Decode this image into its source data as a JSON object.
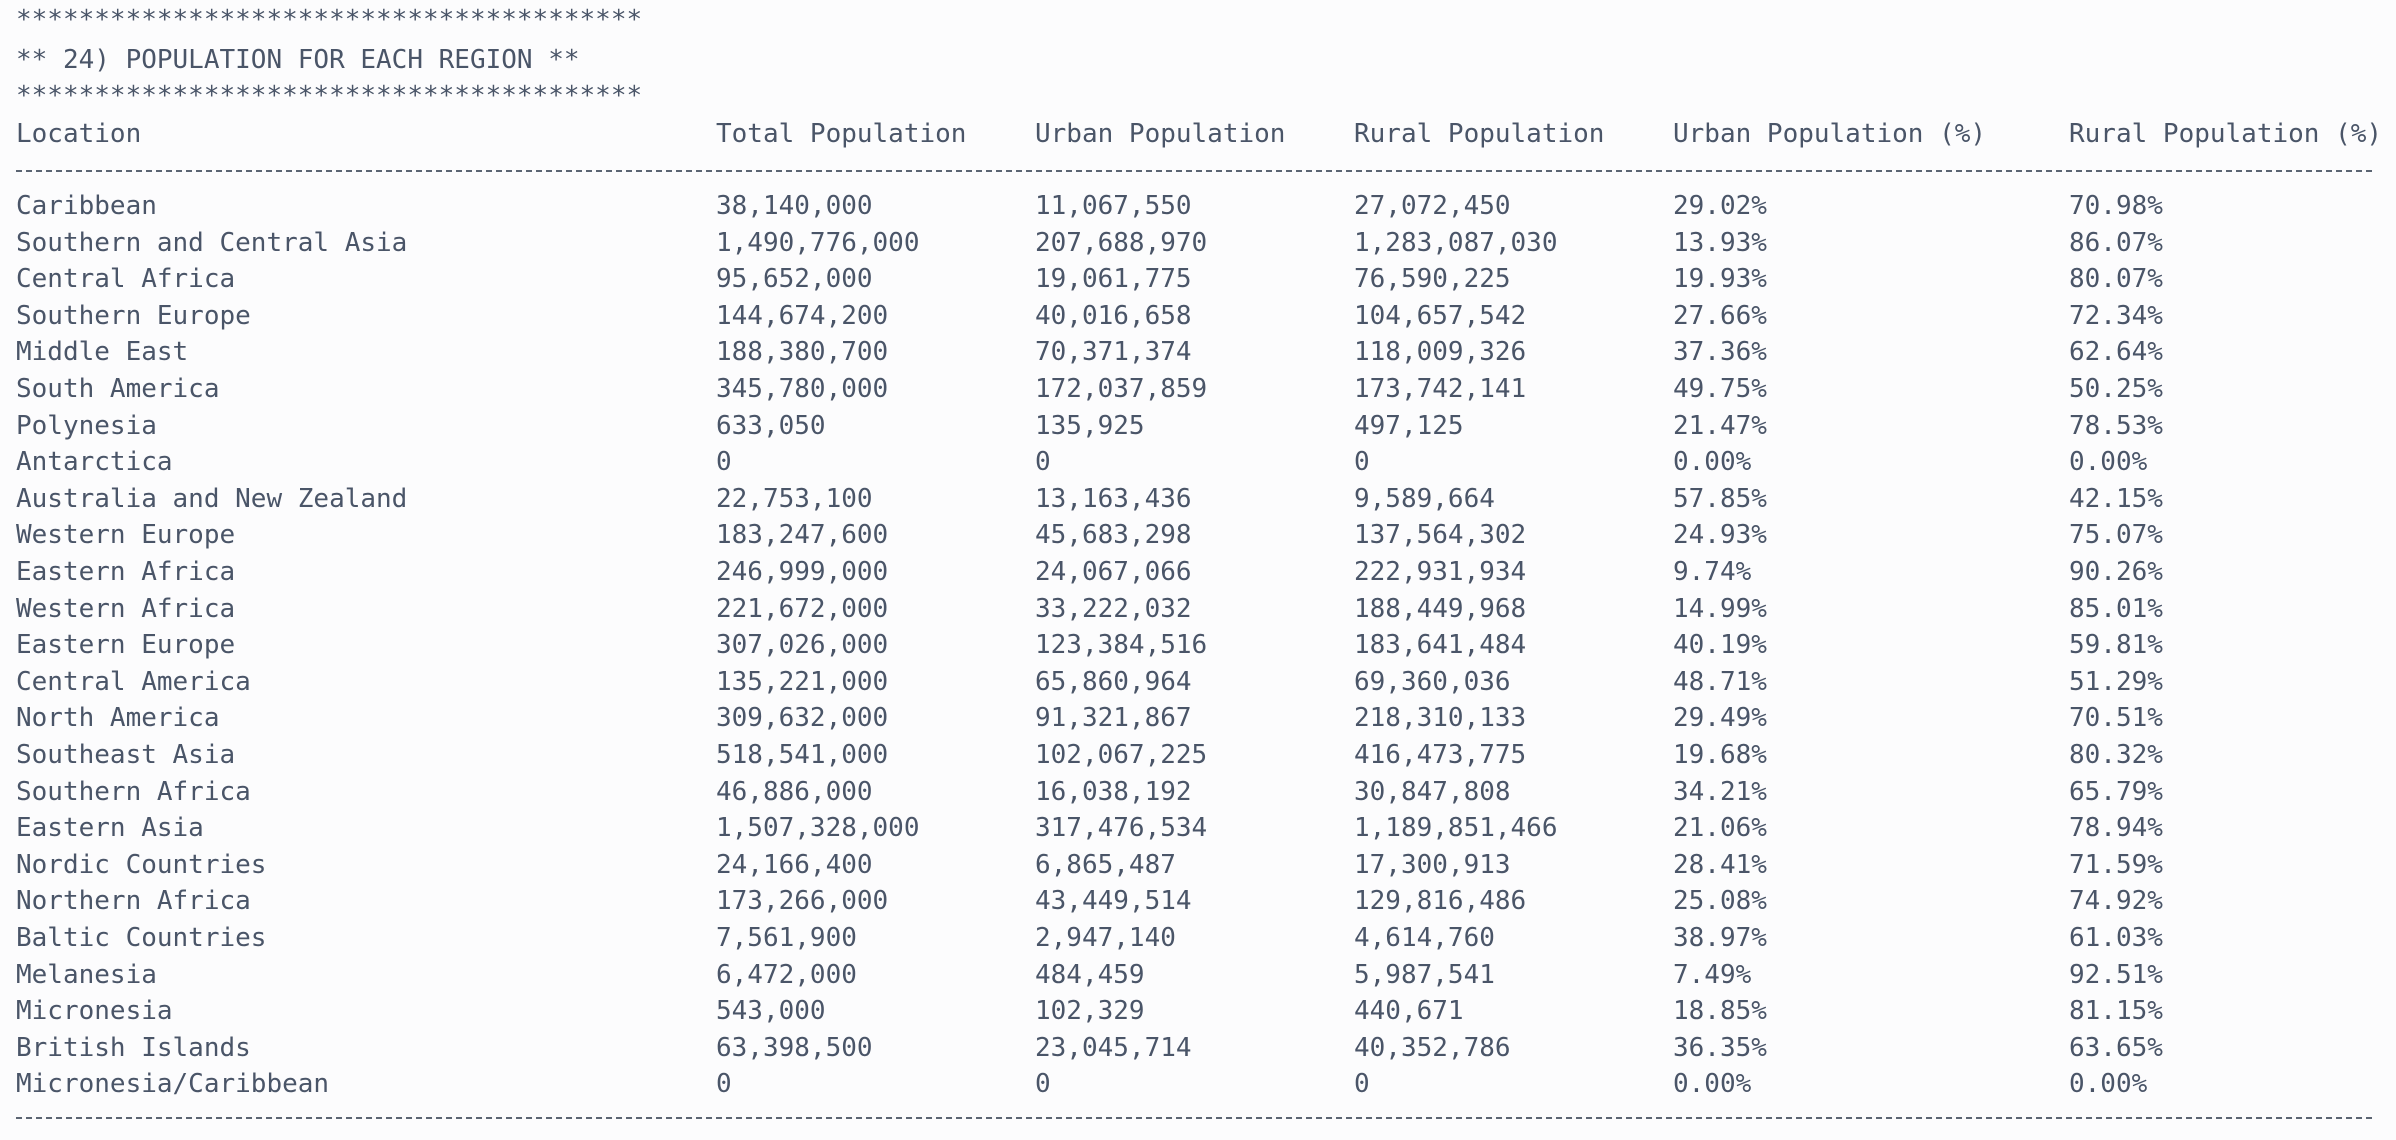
{
  "banner": {
    "top_stars": "****************************************",
    "title": "** 24) POPULATION FOR EACH REGION **",
    "bottom_stars": "****************************************"
  },
  "table": {
    "columns": [
      "Location",
      "Total Population",
      "Urban Population",
      "Rural Population",
      "Urban Population (%)",
      "Rural Population (%)"
    ],
    "rows": [
      [
        "Caribbean",
        "38,140,000",
        "11,067,550",
        "27,072,450",
        "29.02%",
        "70.98%"
      ],
      [
        "Southern and Central Asia",
        "1,490,776,000",
        "207,688,970",
        "1,283,087,030",
        "13.93%",
        "86.07%"
      ],
      [
        "Central Africa",
        "95,652,000",
        "19,061,775",
        "76,590,225",
        "19.93%",
        "80.07%"
      ],
      [
        "Southern Europe",
        "144,674,200",
        "40,016,658",
        "104,657,542",
        "27.66%",
        "72.34%"
      ],
      [
        "Middle East",
        "188,380,700",
        "70,371,374",
        "118,009,326",
        "37.36%",
        "62.64%"
      ],
      [
        "South America",
        "345,780,000",
        "172,037,859",
        "173,742,141",
        "49.75%",
        "50.25%"
      ],
      [
        "Polynesia",
        "633,050",
        "135,925",
        "497,125",
        "21.47%",
        "78.53%"
      ],
      [
        "Antarctica",
        "0",
        "0",
        "0",
        "0.00%",
        "0.00%"
      ],
      [
        "Australia and New Zealand",
        "22,753,100",
        "13,163,436",
        "9,589,664",
        "57.85%",
        "42.15%"
      ],
      [
        "Western Europe",
        "183,247,600",
        "45,683,298",
        "137,564,302",
        "24.93%",
        "75.07%"
      ],
      [
        "Eastern Africa",
        "246,999,000",
        "24,067,066",
        "222,931,934",
        "9.74%",
        "90.26%"
      ],
      [
        "Western Africa",
        "221,672,000",
        "33,222,032",
        "188,449,968",
        "14.99%",
        "85.01%"
      ],
      [
        "Eastern Europe",
        "307,026,000",
        "123,384,516",
        "183,641,484",
        "40.19%",
        "59.81%"
      ],
      [
        "Central America",
        "135,221,000",
        "65,860,964",
        "69,360,036",
        "48.71%",
        "51.29%"
      ],
      [
        "North America",
        "309,632,000",
        "91,321,867",
        "218,310,133",
        "29.49%",
        "70.51%"
      ],
      [
        "Southeast Asia",
        "518,541,000",
        "102,067,225",
        "416,473,775",
        "19.68%",
        "80.32%"
      ],
      [
        "Southern Africa",
        "46,886,000",
        "16,038,192",
        "30,847,808",
        "34.21%",
        "65.79%"
      ],
      [
        "Eastern Asia",
        "1,507,328,000",
        "317,476,534",
        "1,189,851,466",
        "21.06%",
        "78.94%"
      ],
      [
        "Nordic Countries",
        "24,166,400",
        "6,865,487",
        "17,300,913",
        "28.41%",
        "71.59%"
      ],
      [
        "Northern Africa",
        "173,266,000",
        "43,449,514",
        "129,816,486",
        "25.08%",
        "74.92%"
      ],
      [
        "Baltic Countries",
        "7,561,900",
        "2,947,140",
        "4,614,760",
        "38.97%",
        "61.03%"
      ],
      [
        "Melanesia",
        "6,472,000",
        "484,459",
        "5,987,541",
        "7.49%",
        "92.51%"
      ],
      [
        "Micronesia",
        "543,000",
        "102,329",
        "440,671",
        "18.85%",
        "81.15%"
      ],
      [
        "British Islands",
        "63,398,500",
        "23,045,714",
        "40,352,786",
        "36.35%",
        "63.65%"
      ],
      [
        "Micronesia/Caribbean",
        "0",
        "0",
        "0",
        "0.00%",
        "0.00%"
      ]
    ]
  },
  "colors": {
    "background": "#fcfcfd",
    "text": "#4a5568",
    "separator": "#5b6472"
  }
}
